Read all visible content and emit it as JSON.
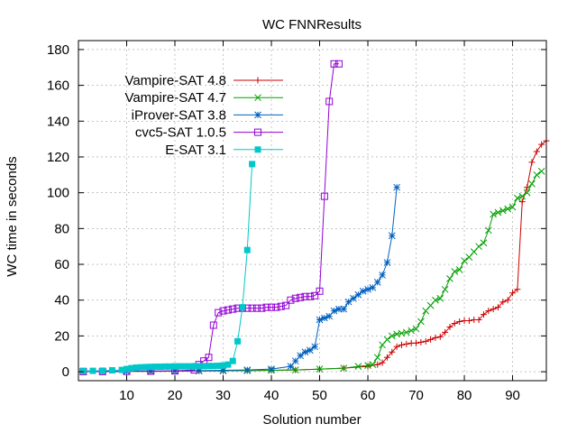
{
  "chart_data": {
    "type": "line",
    "title": "WC FNNResults",
    "xlabel": "Solution number",
    "ylabel": "WC time in seconds",
    "xlim": [
      0,
      97
    ],
    "ylim": [
      -5,
      185
    ],
    "x_ticks": [
      "10",
      "20",
      "30",
      "40",
      "50",
      "60",
      "70",
      "80",
      "90"
    ],
    "x_tick_values": [
      10,
      20,
      30,
      40,
      50,
      60,
      70,
      80,
      90
    ],
    "y_ticks": [
      "0",
      "20",
      "40",
      "60",
      "80",
      "100",
      "120",
      "140",
      "160",
      "180"
    ],
    "y_tick_values": [
      0,
      20,
      40,
      60,
      80,
      100,
      120,
      140,
      160,
      180
    ],
    "grid": true,
    "legend_position": "top-left",
    "series": [
      {
        "name": "Vampire-SAT 4.8",
        "color": "#cc0000",
        "marker": "plus",
        "x": [
          1,
          5,
          10,
          15,
          20,
          25,
          30,
          35,
          40,
          45,
          50,
          55,
          60,
          62,
          63,
          64,
          65,
          66,
          67,
          68,
          69,
          70,
          71,
          72,
          73,
          74,
          75,
          76,
          77,
          78,
          79,
          80,
          81,
          82,
          83,
          84,
          85,
          86,
          87,
          88,
          89,
          90,
          91,
          92,
          93,
          94,
          95,
          96,
          97
        ],
        "y": [
          0.1,
          0.1,
          0.2,
          0.2,
          0.3,
          0.4,
          0.5,
          0.6,
          0.8,
          1.0,
          1.4,
          2.0,
          3.0,
          4,
          5,
          8,
          11,
          14,
          15,
          15.5,
          16,
          16,
          16.5,
          17,
          18,
          19,
          19.5,
          22,
          25,
          27,
          28,
          28.5,
          28.5,
          29,
          29,
          32,
          34,
          35,
          36,
          39,
          40,
          44,
          46,
          95,
          103,
          117,
          123,
          127,
          129
        ]
      },
      {
        "name": "Vampire-SAT 4.7",
        "color": "#00a000",
        "marker": "x",
        "x": [
          1,
          5,
          10,
          15,
          20,
          25,
          30,
          35,
          40,
          45,
          50,
          55,
          58,
          60,
          61,
          62,
          63,
          64,
          65,
          66,
          67,
          68,
          69,
          70,
          71,
          72,
          73,
          74,
          75,
          76,
          77,
          78,
          79,
          80,
          81,
          82,
          83,
          84,
          85,
          86,
          87,
          88,
          89,
          90,
          91,
          92,
          93,
          94,
          95,
          96
        ],
        "y": [
          0.1,
          0.1,
          0.2,
          0.2,
          0.3,
          0.4,
          0.5,
          0.6,
          0.8,
          1.0,
          1.5,
          2.0,
          3.0,
          3.5,
          4,
          8,
          15,
          18,
          20,
          21,
          21.5,
          22,
          23,
          24,
          28,
          34,
          37,
          40,
          41,
          46,
          52,
          56,
          57,
          62,
          64,
          67,
          70,
          72,
          79,
          88,
          89,
          90,
          91,
          92,
          97,
          98,
          100,
          105,
          110,
          112
        ]
      },
      {
        "name": "iProver-SAT 3.8",
        "color": "#0060c0",
        "marker": "star",
        "x": [
          1,
          5,
          10,
          15,
          20,
          25,
          30,
          35,
          40,
          44,
          45,
          46,
          47,
          48,
          49,
          50,
          51,
          52,
          53,
          54,
          55,
          56,
          57,
          58,
          59,
          60,
          61,
          62,
          63,
          64,
          65,
          66
        ],
        "y": [
          0.2,
          0.2,
          0.3,
          0.4,
          0.5,
          0.6,
          0.8,
          1.0,
          1.5,
          3,
          6,
          9,
          11,
          12,
          14,
          29,
          30,
          31,
          34,
          35,
          35,
          39,
          41,
          43,
          45,
          46,
          47,
          50,
          54,
          61,
          76,
          103
        ]
      },
      {
        "name": "cvc5-SAT 1.0.5",
        "color": "#9400d3",
        "marker": "square",
        "x": [
          1,
          5,
          10,
          15,
          20,
          24,
          25,
          26,
          27,
          28,
          29,
          30,
          31,
          32,
          33,
          34,
          35,
          36,
          37,
          38,
          39,
          40,
          41,
          42,
          43,
          44,
          45,
          46,
          47,
          48,
          49,
          50,
          51,
          52,
          53,
          54
        ],
        "y": [
          0.1,
          0.1,
          0.2,
          0.3,
          0.5,
          1,
          4,
          6,
          8,
          26,
          33,
          34,
          34.5,
          35,
          35.5,
          35.5,
          35.5,
          35.5,
          35.5,
          35.5,
          36,
          36,
          36,
          36.5,
          37,
          40,
          41,
          41.5,
          42,
          42,
          42.5,
          45,
          98,
          151,
          172,
          172
        ]
      },
      {
        "name": "E-SAT 3.1",
        "color": "#00c8c8",
        "marker": "filled-square",
        "x": [
          1,
          3,
          5,
          7,
          9,
          10,
          11,
          12,
          13,
          14,
          15,
          16,
          17,
          18,
          19,
          20,
          21,
          22,
          23,
          24,
          25,
          26,
          27,
          28,
          29,
          30,
          31,
          32,
          33,
          34,
          35,
          36
        ],
        "y": [
          0.5,
          0.5,
          0.6,
          0.8,
          1,
          1.5,
          2,
          2.3,
          2.5,
          2.6,
          2.7,
          2.8,
          2.8,
          2.9,
          2.9,
          3,
          3,
          3,
          3,
          3.1,
          3.1,
          3.1,
          3.2,
          3.2,
          3.3,
          3.5,
          4,
          6,
          17,
          36,
          68,
          116
        ]
      }
    ]
  }
}
